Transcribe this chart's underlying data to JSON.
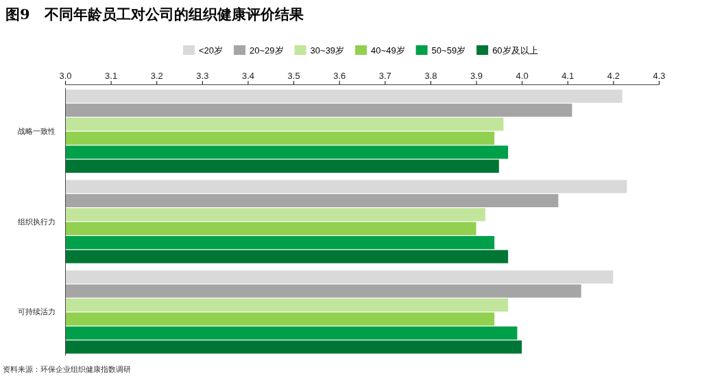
{
  "chart_data": {
    "type": "bar",
    "orientation": "horizontal",
    "title": "图9　不同年龄员工对公司的组织健康评价结果",
    "categories": [
      "战略一致性",
      "组织执行力",
      "可持续活力"
    ],
    "series": [
      {
        "name": "<20岁",
        "color": "#d9d9d9",
        "values": [
          4.22,
          4.23,
          4.2
        ]
      },
      {
        "name": "20~29岁",
        "color": "#a5a5a5",
        "values": [
          4.11,
          4.08,
          4.13
        ]
      },
      {
        "name": "30~39岁",
        "color": "#c2e59c",
        "values": [
          3.96,
          3.92,
          3.97
        ]
      },
      {
        "name": "40~49岁",
        "color": "#92d050",
        "values": [
          3.94,
          3.9,
          3.94
        ]
      },
      {
        "name": "50~59岁",
        "color": "#00a04a",
        "values": [
          3.97,
          3.94,
          3.99
        ]
      },
      {
        "name": "60岁及以上",
        "color": "#007634",
        "values": [
          3.95,
          3.97,
          4.0
        ]
      }
    ],
    "xlim": [
      3.0,
      4.3
    ],
    "xticks": [
      {
        "value": 3.0,
        "label": "3.0"
      },
      3.1,
      3.2,
      3.3,
      3.4,
      3.5,
      3.6,
      3.7,
      3.8,
      3.9,
      {
        "value": 4.0,
        "label": "4.0"
      },
      4.1,
      4.2,
      4.3
    ],
    "grid": false,
    "legend": "top",
    "annotations": [
      "资料来源：环保企业组织健康指数调研"
    ]
  }
}
